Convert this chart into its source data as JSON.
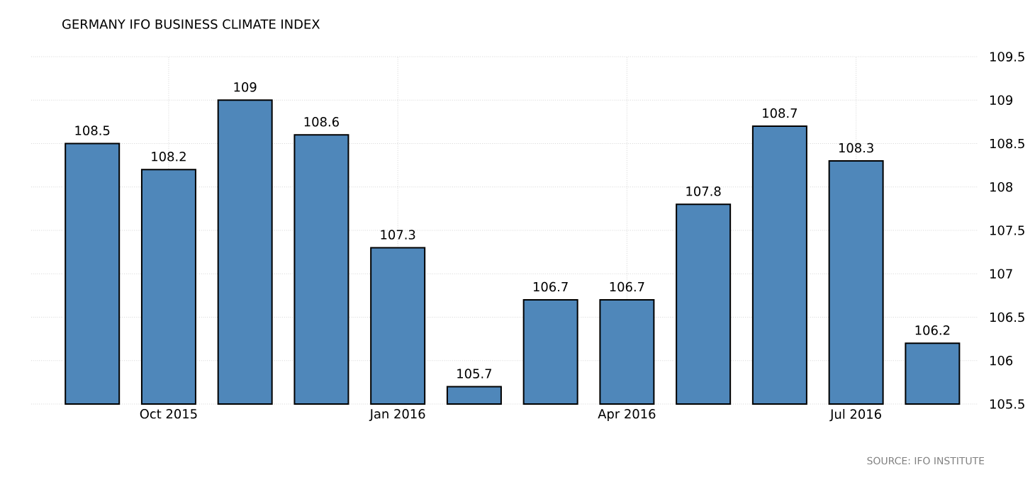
{
  "chart_data": {
    "type": "bar",
    "title": "GERMANY IFO BUSINESS CLIMATE INDEX",
    "categories": [
      null,
      "Oct 2015",
      null,
      null,
      "Jan 2016",
      null,
      null,
      "Apr 2016",
      null,
      null,
      "Jul 2016",
      null
    ],
    "values": [
      108.5,
      108.2,
      109,
      108.6,
      107.3,
      105.7,
      106.7,
      106.7,
      107.8,
      108.7,
      108.3,
      106.2
    ],
    "color": "#4f87ba",
    "ylim": [
      105.5,
      109.5
    ],
    "yticks": [
      105.5,
      106,
      106.5,
      107,
      107.5,
      108,
      108.5,
      109,
      109.5
    ],
    "grid": true,
    "data_labels": true,
    "annotations": [
      "SOURCE: IFO INSTITUTE"
    ]
  }
}
